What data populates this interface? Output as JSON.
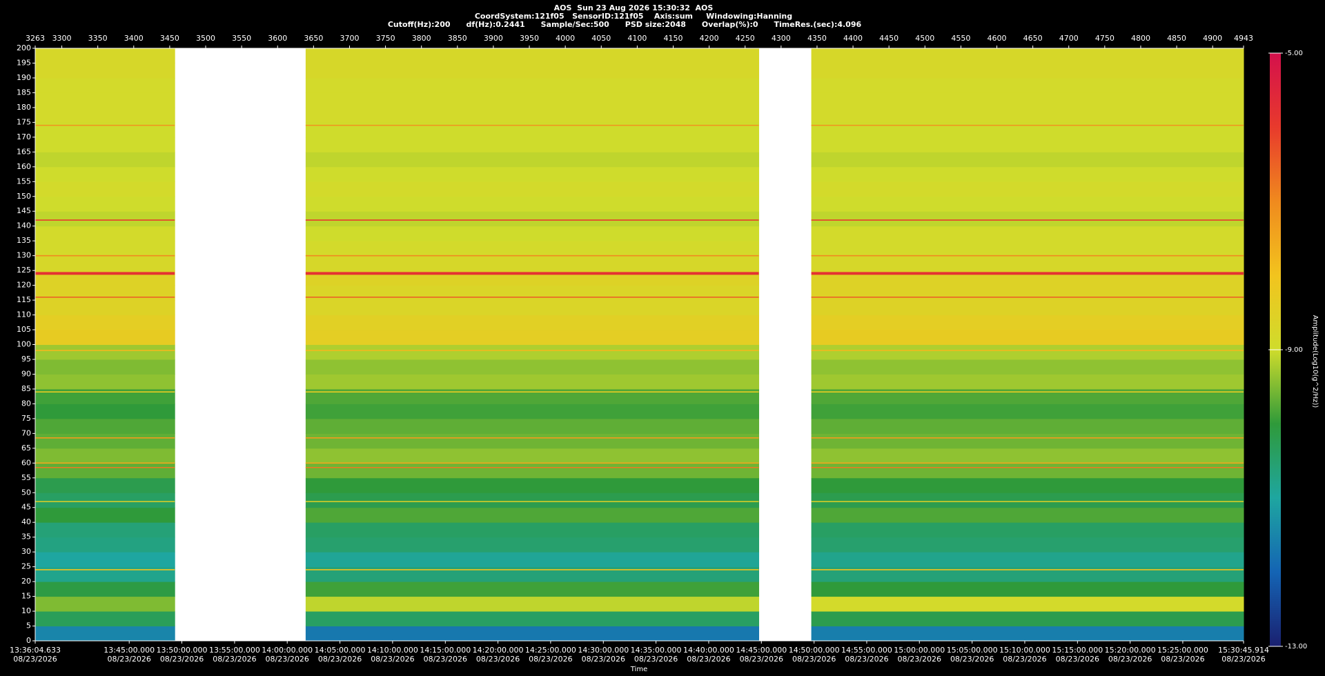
{
  "chart_data": {
    "type": "spectrogram",
    "title": "AOS  Sun 23 Aug 2026 15:30:32  AOS",
    "subtitle": "CoordSystem:121f05   SensorID:121f05    Axis:sum     Windowing:Hanning",
    "parameters": "Cutoff(Hz):200      df(Hz):0.2441      Sample/Sec:500      PSD size:2048      Overlap(%):0      TimeRes.(sec):4.096",
    "xlabel": "Time",
    "colorbar_label": "Amplitude(Log10(g^2/Hz))",
    "xlim": [
      3263,
      4943
    ],
    "xticks": [
      3263,
      3300,
      3350,
      3400,
      3450,
      3500,
      3550,
      3600,
      3650,
      3700,
      3750,
      3800,
      3850,
      3900,
      3950,
      4000,
      4050,
      4100,
      4150,
      4200,
      4250,
      4300,
      4350,
      4400,
      4450,
      4500,
      4550,
      4600,
      4650,
      4700,
      4750,
      4800,
      4850,
      4900,
      4943
    ],
    "time_ticks": [
      {
        "value": 3263,
        "label": "13:36:04.633"
      },
      {
        "value": 3393.7,
        "label": "13:45:00.000"
      },
      {
        "value": 3466.9,
        "label": "13:50:00.000"
      },
      {
        "value": 3540.2,
        "label": "13:55:00.000"
      },
      {
        "value": 3613.4,
        "label": "14:00:00.000"
      },
      {
        "value": 3686.7,
        "label": "14:05:00.000"
      },
      {
        "value": 3759.9,
        "label": "14:10:00.000"
      },
      {
        "value": 3833.2,
        "label": "14:15:00.000"
      },
      {
        "value": 3906.4,
        "label": "14:20:00.000"
      },
      {
        "value": 3979.6,
        "label": "14:25:00.000"
      },
      {
        "value": 4052.9,
        "label": "14:30:00.000"
      },
      {
        "value": 4126.1,
        "label": "14:35:00.000"
      },
      {
        "value": 4199.4,
        "label": "14:40:00.000"
      },
      {
        "value": 4272.6,
        "label": "14:45:00.000"
      },
      {
        "value": 4345.9,
        "label": "14:50:00.000"
      },
      {
        "value": 4419.1,
        "label": "14:55:00.000"
      },
      {
        "value": 4492.3,
        "label": "15:00:00.000"
      },
      {
        "value": 4565.6,
        "label": "15:05:00.000"
      },
      {
        "value": 4638.8,
        "label": "15:10:00.000"
      },
      {
        "value": 4712.1,
        "label": "15:15:00.000"
      },
      {
        "value": 4785.3,
        "label": "15:20:00.000"
      },
      {
        "value": 4858.5,
        "label": "15:25:00.000"
      },
      {
        "value": 4943,
        "label": "15:30:45.914"
      }
    ],
    "date": "08/23/2026",
    "ylim": [
      0,
      200
    ],
    "yticks": [
      0,
      5,
      10,
      15,
      20,
      25,
      30,
      35,
      40,
      45,
      50,
      55,
      60,
      65,
      70,
      75,
      80,
      85,
      90,
      95,
      100,
      105,
      110,
      115,
      120,
      125,
      130,
      135,
      140,
      145,
      150,
      155,
      160,
      165,
      170,
      175,
      180,
      185,
      190,
      195,
      200
    ],
    "xbins": [
      3263,
      3457,
      3639,
      4269,
      4342,
      4943
    ],
    "ybins": [
      0,
      5,
      10,
      15,
      20,
      25,
      30,
      35,
      40,
      45,
      50,
      55,
      60,
      65,
      70,
      75,
      80,
      85,
      90,
      95,
      100,
      105,
      110,
      115,
      120,
      125,
      130,
      135,
      140,
      145,
      150,
      155,
      160,
      165,
      170,
      175,
      180,
      185,
      190,
      195,
      200
    ],
    "values": [
      [
        -11.5,
        null,
        -11.7,
        null,
        -11.6
      ],
      [
        -10.3,
        null,
        -10.4,
        null,
        -10.2
      ],
      [
        -9.5,
        null,
        -9.1,
        null,
        -8.9
      ],
      [
        -10.1,
        null,
        -9.9,
        null,
        -10.0
      ],
      [
        -10.8,
        null,
        -10.6,
        null,
        -10.6
      ],
      [
        -11.0,
        null,
        -10.9,
        null,
        -10.8
      ],
      [
        -10.7,
        null,
        -10.5,
        null,
        -10.5
      ],
      [
        -10.6,
        null,
        -10.4,
        null,
        -10.4
      ],
      [
        -10.0,
        null,
        -9.8,
        null,
        -9.8
      ],
      [
        -10.4,
        null,
        -10.2,
        null,
        -10.2
      ],
      [
        -10.2,
        null,
        -10.0,
        null,
        -10.0
      ],
      [
        -9.7,
        null,
        -9.6,
        null,
        -9.6
      ],
      [
        -9.5,
        null,
        -9.4,
        null,
        -9.4
      ],
      [
        -9.7,
        null,
        -9.6,
        null,
        -9.6
      ],
      [
        -9.8,
        null,
        -9.7,
        null,
        -9.7
      ],
      [
        -10.0,
        null,
        -9.9,
        null,
        -9.9
      ],
      [
        -9.9,
        null,
        -9.8,
        null,
        -9.8
      ],
      [
        -9.4,
        null,
        -9.3,
        null,
        -9.3
      ],
      [
        -9.5,
        null,
        -9.4,
        null,
        -9.4
      ],
      [
        -9.3,
        null,
        -9.2,
        null,
        -9.2
      ],
      [
        -8.3,
        null,
        -8.4,
        null,
        -8.3
      ],
      [
        -8.4,
        null,
        -8.5,
        null,
        -8.4
      ],
      [
        -8.6,
        null,
        -8.7,
        null,
        -8.6
      ],
      [
        -8.6,
        null,
        -8.7,
        null,
        -8.6
      ],
      [
        -8.6,
        null,
        -8.6,
        null,
        -8.6
      ],
      [
        -8.8,
        null,
        -8.8,
        null,
        -8.8
      ],
      [
        -8.9,
        null,
        -8.9,
        null,
        -8.9
      ],
      [
        -8.9,
        null,
        -9.0,
        null,
        -8.9
      ],
      [
        -9.1,
        null,
        -9.1,
        null,
        -9.1
      ],
      [
        -9.0,
        null,
        -9.0,
        null,
        -9.0
      ],
      [
        -8.9,
        null,
        -8.9,
        null,
        -8.9
      ],
      [
        -9.0,
        null,
        -9.0,
        null,
        -9.0
      ],
      [
        -9.1,
        null,
        -9.1,
        null,
        -9.1
      ],
      [
        -9.0,
        null,
        -9.0,
        null,
        -9.0
      ],
      [
        -9.0,
        null,
        -9.0,
        null,
        -9.0
      ],
      [
        -8.9,
        null,
        -8.9,
        null,
        -8.9
      ],
      [
        -8.9,
        null,
        -8.9,
        null,
        -8.9
      ],
      [
        -8.9,
        null,
        -8.9,
        null,
        -8.9
      ],
      [
        -8.8,
        null,
        -8.8,
        null,
        -8.8
      ],
      [
        -8.8,
        null,
        -8.8,
        null,
        -8.8
      ]
    ],
    "peaks": {
      "freq": [
        174,
        142,
        130,
        124,
        116,
        98,
        84,
        68.5,
        60,
        58.5,
        47,
        24
      ],
      "values": [
        -7.2,
        -6.0,
        -7.0,
        -5.8,
        -6.5,
        -7.8,
        -8.3,
        -7.3,
        -7.5,
        -6.8,
        -8.5,
        -8.0
      ]
    },
    "clim": [
      -13,
      -5
    ],
    "cticks": [
      {
        "value": -5,
        "label": "-5.00"
      },
      {
        "value": -9,
        "label": "-9.00"
      },
      {
        "value": -13,
        "label": "-13.00"
      }
    ],
    "colors": [
      "#1a2070",
      "#1464b4",
      "#1ea6a0",
      "#2f9a3a",
      "#cfdc2c",
      "#f2c41e",
      "#f08a1e",
      "#e83a2c",
      "#d4104c"
    ]
  }
}
